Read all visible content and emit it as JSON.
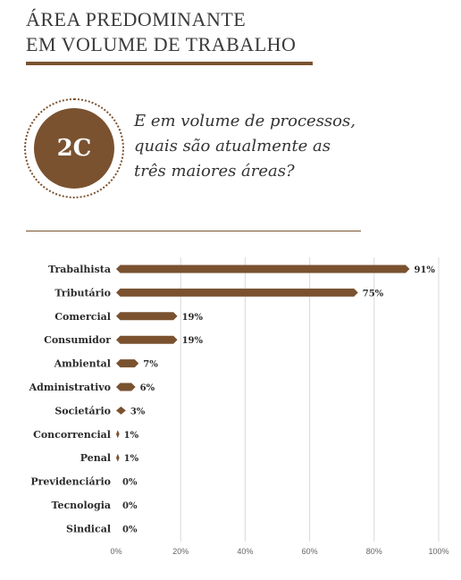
{
  "title": {
    "line1": "ÁREA PREDOMINANTE",
    "line2": "EM VOLUME DE TRABALHO"
  },
  "badge": {
    "label": "2C"
  },
  "question": {
    "line1": "E em volume de processos,",
    "line2": "quais são atualmente as",
    "line3": "três maiores áreas?"
  },
  "colors": {
    "accent": "#7a5230",
    "grid": "#d9d9d9"
  },
  "chart_data": {
    "type": "bar",
    "orientation": "horizontal",
    "categories": [
      "Trabalhista",
      "Tributário",
      "Comercial",
      "Consumidor",
      "Ambiental",
      "Administrativo",
      "Societário",
      "Concorrencial",
      "Penal",
      "Previdenciário",
      "Tecnologia",
      "Sindical"
    ],
    "values": [
      91,
      75,
      19,
      19,
      7,
      6,
      3,
      1,
      1,
      0,
      0,
      0
    ],
    "value_labels": [
      "91%",
      "75%",
      "19%",
      "19%",
      "7%",
      "6%",
      "3%",
      "1%",
      "1%",
      "0%",
      "0%",
      "0%"
    ],
    "xlim": [
      0,
      100
    ],
    "x_ticks": [
      "0%",
      "20%",
      "40%",
      "60%",
      "80%",
      "100%"
    ],
    "grid": true
  }
}
